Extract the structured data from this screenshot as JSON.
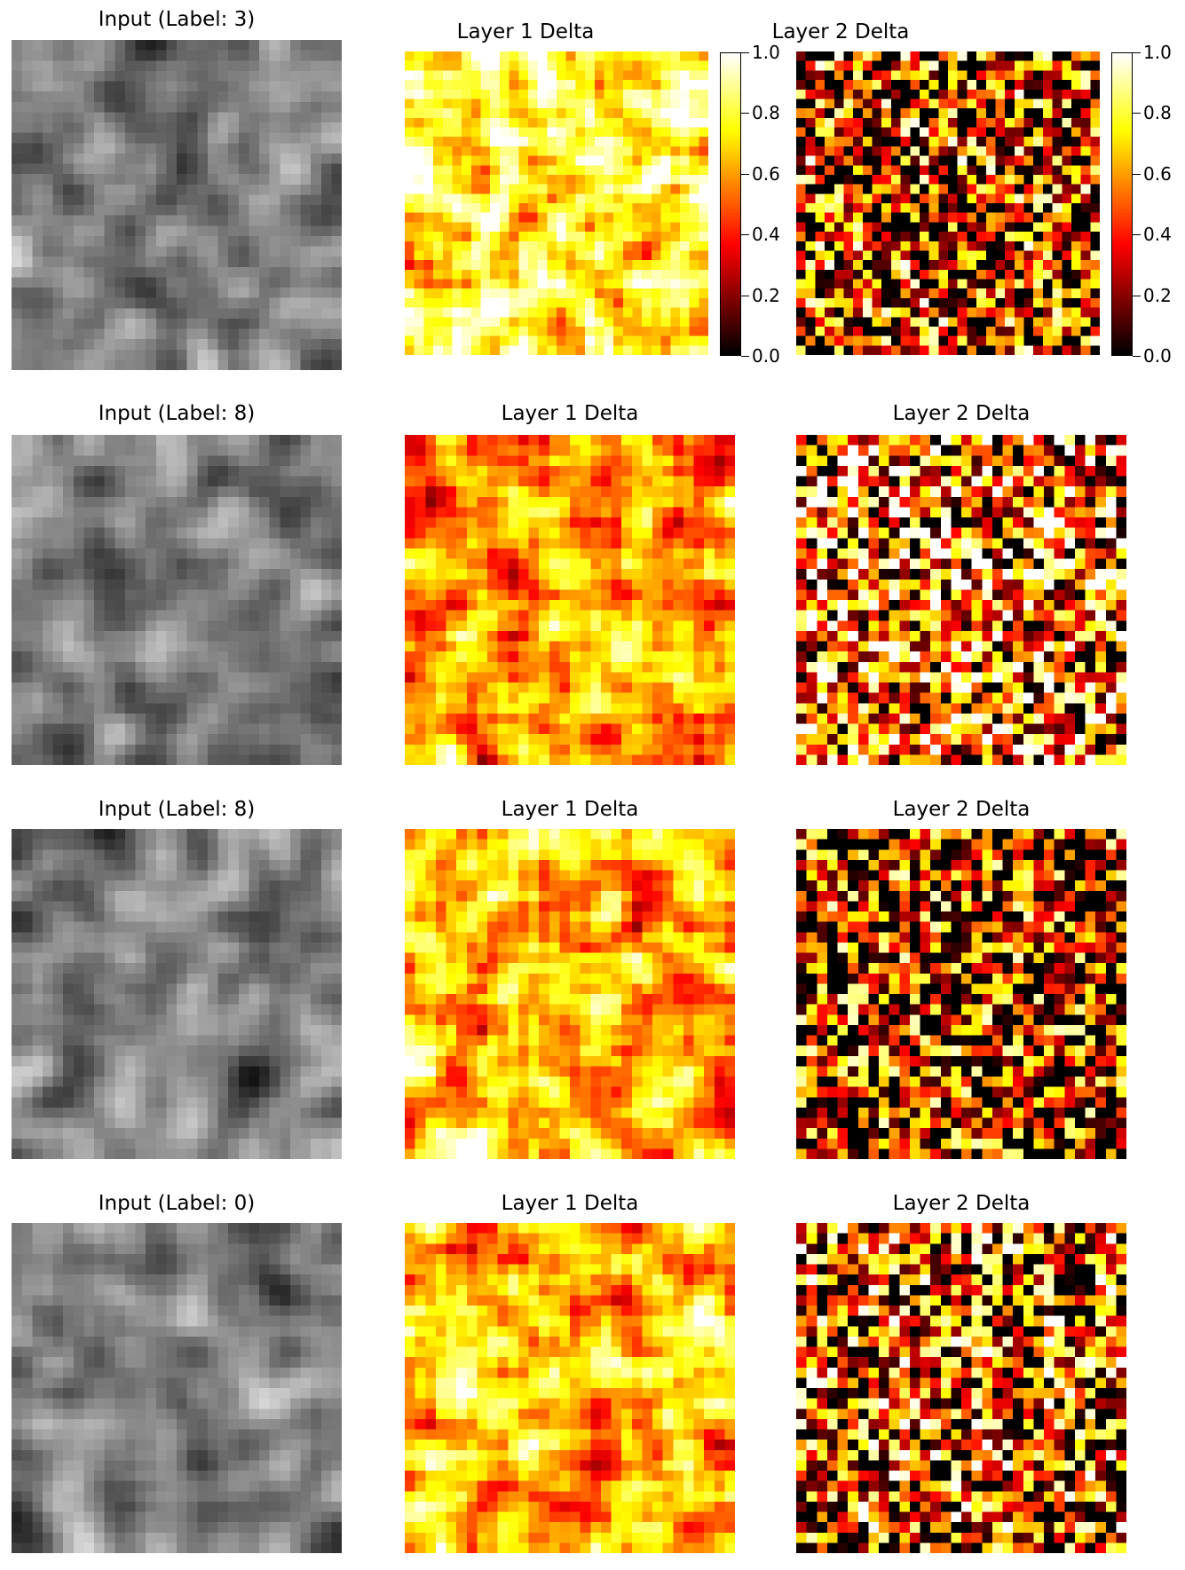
{
  "chart_data": {
    "type": "heatmap",
    "grid_size": 32,
    "colormaps": {
      "input": "gray",
      "delta": "hot"
    },
    "color_range": [
      0.0,
      1.0
    ],
    "colorbar": {
      "ticks": [
        0.0,
        0.2,
        0.4,
        0.6,
        0.8,
        1.0
      ],
      "tick_labels": [
        "0.0",
        "0.2",
        "0.4",
        "0.6",
        "0.8",
        "1.0"
      ]
    },
    "rows": [
      {
        "input_title": "Input (Label: 3)",
        "layer1_title": "Layer 1 Delta",
        "layer2_title": "Layer 2 Delta",
        "layer1_mean_intensity": 0.8,
        "layer2_mean_intensity": 0.35
      },
      {
        "input_title": "Input (Label: 8)",
        "layer1_title": "Layer 1 Delta",
        "layer2_title": "Layer 2 Delta",
        "layer1_mean_intensity": 0.6,
        "layer2_mean_intensity": 0.55
      },
      {
        "input_title": "Input (Label: 8)",
        "layer1_title": "Layer 1 Delta",
        "layer2_title": "Layer 2 Delta",
        "layer1_mean_intensity": 0.65,
        "layer2_mean_intensity": 0.3
      },
      {
        "input_title": "Input (Label: 0)",
        "layer1_title": "Layer 1 Delta",
        "layer2_title": "Layer 2 Delta",
        "layer1_mean_intensity": 0.65,
        "layer2_mean_intensity": 0.4
      }
    ]
  }
}
